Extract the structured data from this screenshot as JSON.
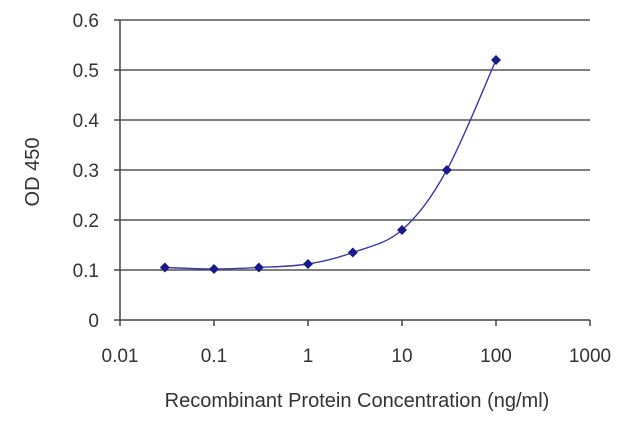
{
  "chart_data": {
    "type": "scatter",
    "title": "",
    "xlabel": "Recombinant Protein Concentration (ng/ml)",
    "ylabel": "OD 450",
    "xscale": "log",
    "xlim": [
      0.01,
      1000
    ],
    "ylim": [
      0,
      0.6
    ],
    "x_ticks": [
      0.01,
      0.1,
      1,
      10,
      100,
      1000
    ],
    "x_tick_labels": [
      "0.01",
      "0.1",
      "1",
      "10",
      "100",
      "1000"
    ],
    "y_ticks": [
      0,
      0.1,
      0.2,
      0.3,
      0.4,
      0.5,
      0.6
    ],
    "y_tick_labels": [
      "0",
      "0.1",
      "0.2",
      "0.3",
      "0.4",
      "0.5",
      "0.6"
    ],
    "grid": "horizontal",
    "legend": "none",
    "marker": "diamond",
    "line": "smooth",
    "series_color": "#1a1a8c",
    "grid_color": "#555555",
    "series": [
      {
        "x": [
          0.03,
          0.1,
          0.3,
          1,
          3,
          10,
          30,
          100
        ],
        "y": [
          0.105,
          0.102,
          0.105,
          0.112,
          0.135,
          0.18,
          0.3,
          0.52
        ]
      }
    ]
  }
}
